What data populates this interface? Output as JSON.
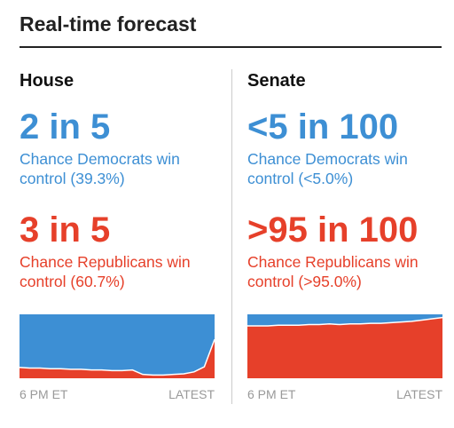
{
  "title": "Real-time forecast",
  "panels": [
    {
      "name": "House",
      "dem_headline": "2 in 5",
      "dem_text": "Chance Democrats win control (39.3%)",
      "rep_headline": "3 in 5",
      "rep_text": "Chance Republicans win control (60.7%)",
      "chart": {
        "type": "area",
        "stacked": true,
        "categories": [
          "6 PM ET",
          null,
          null,
          null,
          null,
          null,
          null,
          null,
          null,
          null,
          null,
          null,
          null,
          null,
          null,
          null,
          null,
          null,
          null,
          "LATEST"
        ],
        "ylim": [
          0,
          100
        ],
        "series": [
          {
            "color": "#e6402a",
            "values": [
              17,
              16,
              16,
              15,
              15,
              14,
              14,
              13,
              13,
              12,
              12,
              13,
              6,
              5,
              5,
              6,
              7,
              10,
              18,
              60.7
            ]
          },
          {
            "color": "#3d8fd4",
            "values": [
              83,
              84,
              84,
              85,
              85,
              86,
              86,
              87,
              87,
              88,
              88,
              87,
              94,
              95,
              95,
              94,
              93,
              90,
              82,
              39.3
            ]
          }
        ]
      }
    },
    {
      "name": "Senate",
      "dem_headline": "<5 in 100",
      "dem_text": "Chance Democrats win control (<5.0%)",
      "rep_headline": ">95 in 100",
      "rep_text": "Chance Republicans win control (>95.0%)",
      "chart": {
        "type": "area",
        "stacked": true,
        "categories": [
          "6 PM ET",
          null,
          null,
          null,
          null,
          null,
          null,
          null,
          null,
          null,
          null,
          null,
          null,
          null,
          null,
          null,
          null,
          null,
          null,
          "LATEST"
        ],
        "ylim": [
          0,
          100
        ],
        "series": [
          {
            "color": "#e6402a",
            "values": [
              82,
              82,
              82,
              83,
              83,
              83,
              84,
              84,
              85,
              84,
              85,
              85,
              86,
              86,
              87,
              88,
              89,
              91,
              93,
              95
            ]
          },
          {
            "color": "#3d8fd4",
            "values": [
              18,
              18,
              18,
              17,
              17,
              17,
              16,
              16,
              15,
              16,
              15,
              15,
              14,
              14,
              13,
              12,
              11,
              9,
              7,
              5
            ]
          }
        ]
      }
    }
  ]
}
